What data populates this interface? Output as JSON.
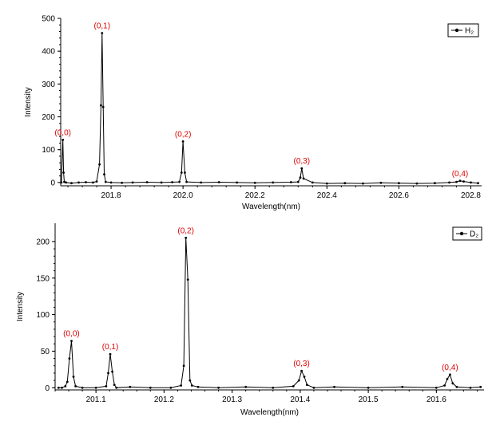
{
  "chart_data": [
    {
      "type": "line",
      "xlabel": "Wavelength(nm)",
      "ylabel": "Intensity",
      "xlim": [
        201.66,
        202.83
      ],
      "ylim": [
        -10,
        500
      ],
      "x_ticks": [
        "201.8",
        "202.0",
        "202.2",
        "202.4",
        "202.6",
        "202.8"
      ],
      "y_ticks": [
        "0",
        "100",
        "200",
        "300",
        "400",
        "500"
      ],
      "grid": false,
      "legend": "top-right",
      "series": [
        {
          "name": "H₂",
          "color": "#000000",
          "x": [
            201.662,
            201.666,
            201.668,
            201.67,
            201.675,
            201.69,
            201.71,
            201.73,
            201.75,
            201.76,
            201.768,
            201.772,
            201.775,
            201.778,
            201.781,
            201.785,
            201.8,
            201.83,
            201.86,
            201.9,
            201.94,
            201.97,
            201.99,
            201.996,
            202.0,
            202.005,
            202.01,
            202.05,
            202.1,
            202.15,
            202.2,
            202.25,
            202.3,
            202.32,
            202.326,
            202.33,
            202.335,
            202.36,
            202.4,
            202.45,
            202.5,
            202.55,
            202.6,
            202.65,
            202.7,
            202.74,
            202.76,
            202.77,
            202.78,
            202.8,
            202.82
          ],
          "y": [
            0,
            130,
            30,
            2,
            0,
            -2,
            0,
            1,
            0,
            3,
            55,
            235,
            455,
            230,
            25,
            2,
            0,
            -1,
            0,
            1,
            0,
            1,
            2,
            30,
            125,
            30,
            2,
            0,
            1,
            0,
            -1,
            0,
            1,
            2,
            15,
            43,
            12,
            0,
            -3,
            -2,
            -3,
            -1,
            -2,
            -3,
            -2,
            0,
            2,
            5,
            3,
            0,
            -2
          ]
        }
      ],
      "annotations": [
        "(0,0)",
        "(0,1)",
        "(0,2)",
        "(0,3)",
        "(0,4)"
      ],
      "annotation_x": [
        201.666,
        201.775,
        202.0,
        202.33,
        202.77
      ],
      "annotation_y": [
        130,
        455,
        125,
        43,
        5
      ]
    },
    {
      "type": "line",
      "xlabel": "Wavelength(nm)",
      "ylabel": "Intensity",
      "xlim": [
        201.04,
        201.67
      ],
      "ylim": [
        -3,
        225
      ],
      "x_ticks": [
        "201.1",
        "201.2",
        "201.3",
        "201.4",
        "201.5",
        "201.6"
      ],
      "y_ticks": [
        "0",
        "50",
        "100",
        "150",
        "200"
      ],
      "grid": false,
      "legend": "top-right",
      "series": [
        {
          "name": "D₂",
          "color": "#000000",
          "x": [
            201.045,
            201.05,
            201.055,
            201.058,
            201.061,
            201.064,
            201.067,
            201.07,
            201.08,
            201.1,
            201.115,
            201.118,
            201.121,
            201.124,
            201.127,
            201.13,
            201.15,
            201.18,
            201.21,
            201.225,
            201.229,
            201.232,
            201.235,
            201.238,
            201.241,
            201.25,
            201.28,
            201.32,
            201.36,
            201.39,
            201.398,
            201.402,
            201.406,
            201.41,
            201.42,
            201.45,
            201.5,
            201.55,
            201.6,
            201.612,
            201.616,
            201.62,
            201.624,
            201.63,
            201.65,
            201.665
          ],
          "y": [
            0,
            0,
            2,
            8,
            40,
            64,
            15,
            2,
            0,
            0,
            2,
            20,
            46,
            22,
            4,
            0,
            1,
            0,
            0,
            3,
            30,
            205,
            148,
            10,
            3,
            1,
            0,
            1,
            0,
            2,
            10,
            23,
            15,
            4,
            0,
            1,
            0,
            1,
            0,
            3,
            12,
            18,
            6,
            1,
            0,
            1
          ]
        }
      ],
      "annotations": [
        "(0,0)",
        "(0,1)",
        "(0,2)",
        "(0,3)",
        "(0,4)"
      ],
      "annotation_x": [
        201.064,
        201.121,
        201.232,
        201.402,
        201.62
      ],
      "annotation_y": [
        64,
        46,
        205,
        23,
        18
      ]
    }
  ]
}
